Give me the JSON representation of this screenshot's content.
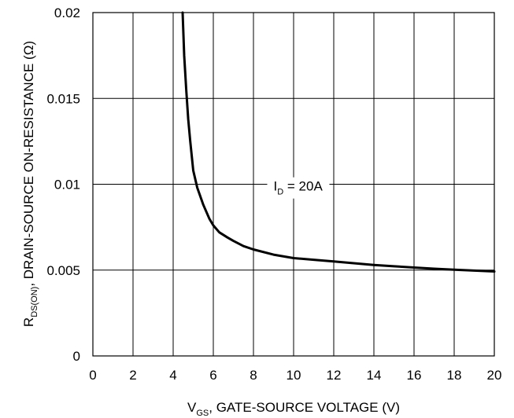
{
  "chart_data": {
    "type": "line",
    "xlim": [
      0,
      20
    ],
    "ylim": [
      0,
      0.02
    ],
    "x_ticks": [
      "0",
      "2",
      "4",
      "6",
      "8",
      "10",
      "12",
      "14",
      "16",
      "18",
      "20"
    ],
    "y_ticks": [
      "0",
      "0.005",
      "0.01",
      "0.015",
      "0.02"
    ],
    "grid": true,
    "xlabel": {
      "sym": "V",
      "sub": "GS",
      "rest": ", GATE-SOURCE VOLTAGE (V)"
    },
    "ylabel": {
      "sym": "R",
      "sub": "DS(ON)",
      "rest": ", DRAIN-SOURCE ON-RESISTANCE (Ω)"
    },
    "series": [
      {
        "x": [
          4.47,
          4.55,
          4.65,
          4.75,
          4.85,
          5.0,
          5.2,
          5.5,
          5.8,
          6.0,
          6.3,
          6.7,
          7.0,
          7.5,
          8.0,
          9.0,
          10.0,
          11.0,
          12.0,
          13.0,
          14.0,
          15.0,
          16.0,
          17.0,
          18.0,
          19.0,
          20.0
        ],
        "y": [
          0.02,
          0.0175,
          0.0155,
          0.0138,
          0.0125,
          0.0108,
          0.0098,
          0.0088,
          0.008,
          0.0076,
          0.0072,
          0.0069,
          0.0067,
          0.0064,
          0.0062,
          0.0059,
          0.0057,
          0.0056,
          0.0055,
          0.0054,
          0.0053,
          0.00522,
          0.00515,
          0.00508,
          0.00502,
          0.00497,
          0.00492
        ]
      }
    ],
    "annotation": {
      "sym": "I",
      "sub": "D",
      "rest": " = 20A",
      "x": 9,
      "y": 0.0099
    }
  }
}
